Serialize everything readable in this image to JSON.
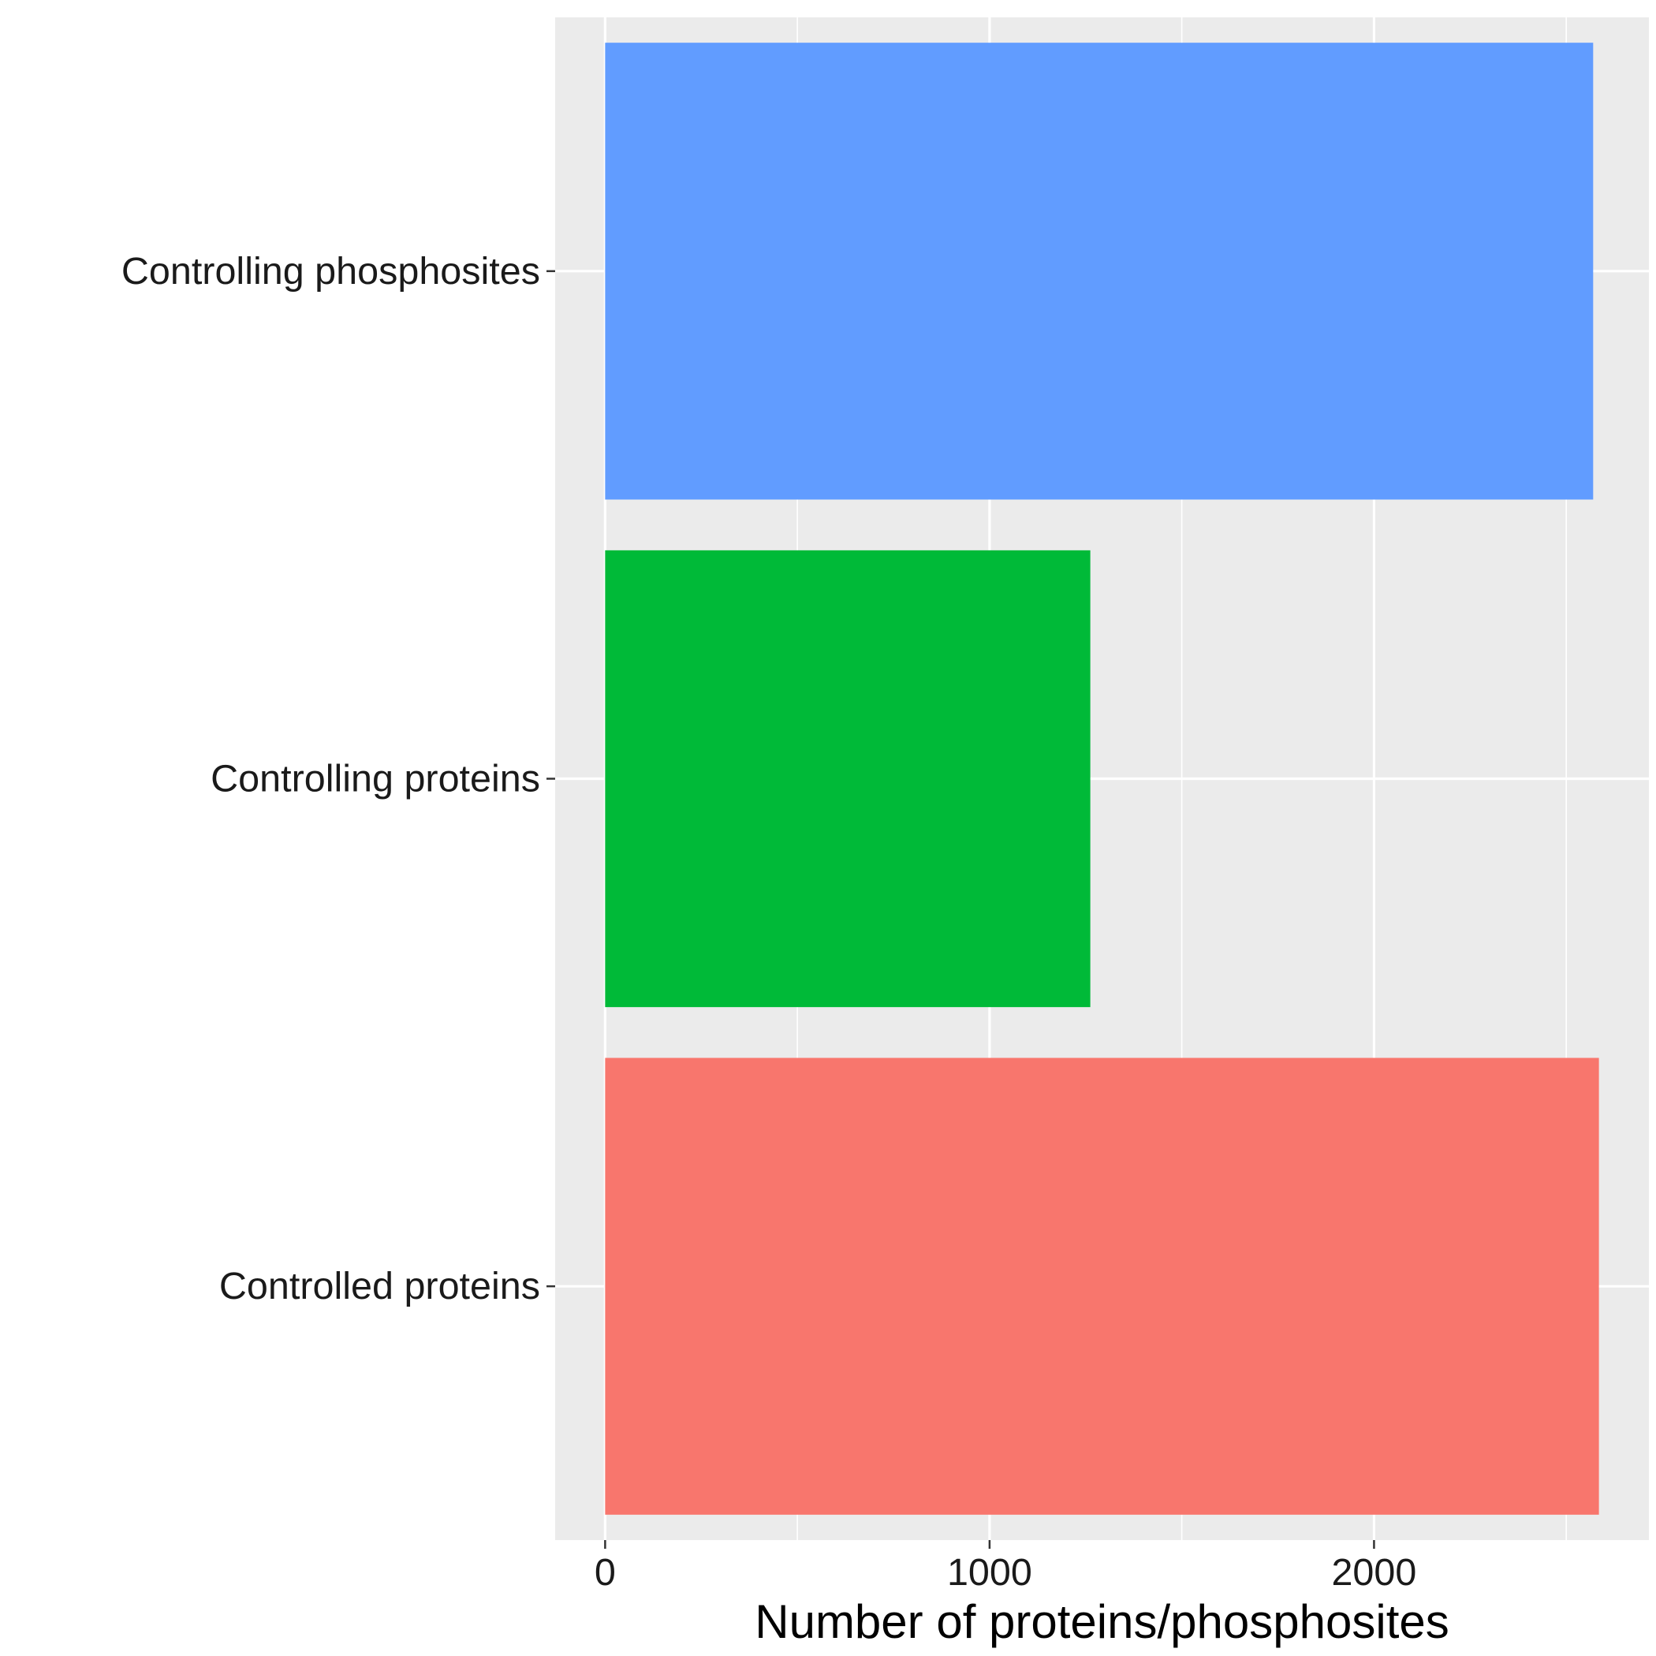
{
  "chart_data": {
    "type": "bar",
    "orientation": "horizontal",
    "categories": [
      "Controlled proteins",
      "Controlling proteins",
      "Controlling phosphosites"
    ],
    "values": [
      2585,
      1262,
      2570
    ],
    "colors": [
      "#F8766D",
      "#00BA38",
      "#619CFF"
    ],
    "title": "",
    "xlabel": "Number of proteins/phosphosites",
    "ylabel": "",
    "xlim": [
      -130,
      2715
    ],
    "x_ticks": [
      0,
      1000,
      2000
    ],
    "x_tick_labels": [
      "0",
      "1000",
      "2000"
    ],
    "grid": true,
    "legend": "none",
    "panel_background": "#EBEBEB",
    "grid_color": "#FFFFFF"
  }
}
